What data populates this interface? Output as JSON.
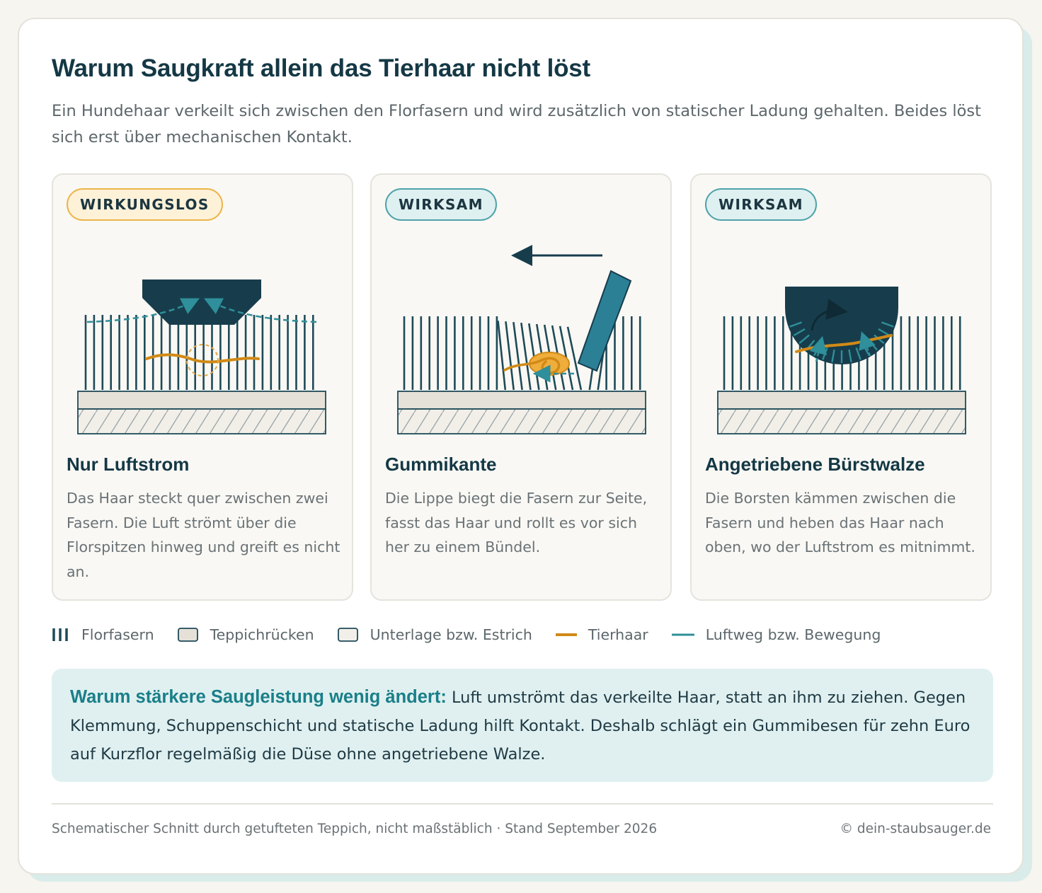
{
  "title": "Warum Saugkraft allein das Tierhaar nicht löst",
  "subtitle": "Ein Hundehaar verkeilt sich zwischen den Florfasern und wird zusätzlich von statischer Ladung gehalten. Beides löst sich erst über mechanischen Kontakt.",
  "colors": {
    "fiber": "#1e4a58",
    "backing": "#e6e1d8",
    "hair": "#d18a16",
    "air": "#2f8f9a",
    "nozzle": "#173d4c",
    "badge_warn_border": "#edb548",
    "badge_ok_border": "#4fa2ab",
    "note_bg": "#e0f0f0"
  },
  "panels": [
    {
      "badge": "WIRKUNGSLOS",
      "badge_style": "warn",
      "title": "Nur Luftstrom",
      "text": "Das Haar steckt quer zwischen zwei Fasern. Die Luft strömt über die Florspitzen hinweg und greift es nicht an."
    },
    {
      "badge": "WIRKSAM",
      "badge_style": "ok",
      "title": "Gummikante",
      "text": "Die Lippe biegt die Fasern zur Seite, fasst das Haar und rollt es vor sich her zu einem Bündel."
    },
    {
      "badge": "WIRKSAM",
      "badge_style": "ok",
      "title": "Angetriebene Bürstwalze",
      "text": "Die Borsten kämmen zwischen die Fasern und heben das Haar nach oben, wo der Luftstrom es mitnimmt."
    }
  ],
  "legend": [
    {
      "label": "Florfasern",
      "icon": "fiber-icon"
    },
    {
      "label": "Teppichrücken",
      "icon": "backing-swatch-icon"
    },
    {
      "label": "Unterlage bzw. Estrich",
      "icon": "underlay-swatch-icon"
    },
    {
      "label": "Tierhaar",
      "icon": "hair-line-icon"
    },
    {
      "label": "Luftweg bzw. Bewegung",
      "icon": "air-line-icon"
    }
  ],
  "note": {
    "lead": "Warum stärkere Saugleistung wenig ändert:",
    "text": " Luft umströmt das verkeilte Haar, statt an ihm zu ziehen. Gegen Klemmung, Schuppenschicht und statische Ladung hilft Kontakt. Deshalb schlägt ein Gummibesen für zehn Euro auf Kurzflor regelmäßig die Düse ohne angetriebene Walze."
  },
  "footer": {
    "left": "Schematischer Schnitt durch getufteten Teppich, nicht maßstäblich · Stand September 2026",
    "right": "© dein-staubsauger.de"
  }
}
